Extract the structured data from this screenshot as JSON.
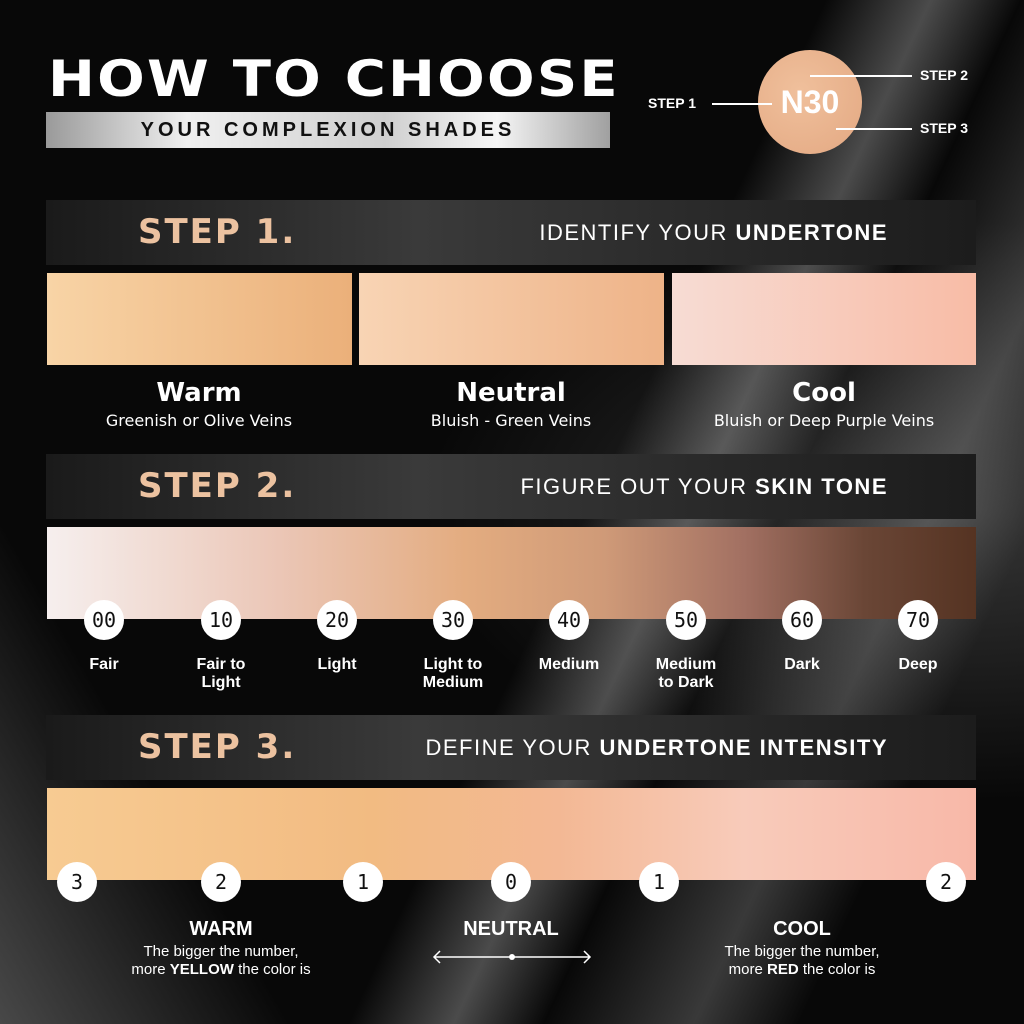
{
  "header": {
    "title": "HOW TO CHOOSE",
    "subtitle": "YOUR COMPLEXION SHADES"
  },
  "example": {
    "code": "N30",
    "step1": "STEP 1",
    "step2": "STEP 2",
    "step3": "STEP 3",
    "color": "#e6ab85"
  },
  "step1": {
    "label": "STEP 1.",
    "text": "IDENTIFY YOUR ",
    "bold": "UNDERTONE",
    "swatches": [
      {
        "title": "Warm",
        "desc": "Greenish or Olive Veins"
      },
      {
        "title": "Neutral",
        "desc": "Bluish - Green Veins"
      },
      {
        "title": "Cool",
        "desc": "Bluish or Deep Purple Veins"
      }
    ]
  },
  "step2": {
    "label": "STEP 2.",
    "text": "FIGURE OUT YOUR ",
    "bold": "SKIN TONE",
    "tones": [
      {
        "num": "00",
        "l1": "Fair",
        "l2": ""
      },
      {
        "num": "10",
        "l1": "Fair to",
        "l2": "Light"
      },
      {
        "num": "20",
        "l1": "Light",
        "l2": ""
      },
      {
        "num": "30",
        "l1": "Light to",
        "l2": "Medium"
      },
      {
        "num": "40",
        "l1": "Medium",
        "l2": ""
      },
      {
        "num": "50",
        "l1": "Medium",
        "l2": "to Dark"
      },
      {
        "num": "60",
        "l1": "Dark",
        "l2": ""
      },
      {
        "num": "70",
        "l1": "Deep",
        "l2": ""
      }
    ]
  },
  "step3": {
    "label": "STEP 3.",
    "text": "DEFINE YOUR ",
    "bold": "UNDERTONE INTENSITY",
    "scale": [
      "3",
      "2",
      "1",
      "0",
      "1",
      "2"
    ],
    "warm": {
      "title": "WARM",
      "l1": "The bigger the number,",
      "pre": "more ",
      "em": "YELLOW",
      "post": " the color is"
    },
    "neutral": {
      "title": "NEUTRAL"
    },
    "cool": {
      "title": "COOL",
      "l1": "The bigger the number,",
      "pre": "more ",
      "em": "RED",
      "post": " the color is"
    }
  }
}
